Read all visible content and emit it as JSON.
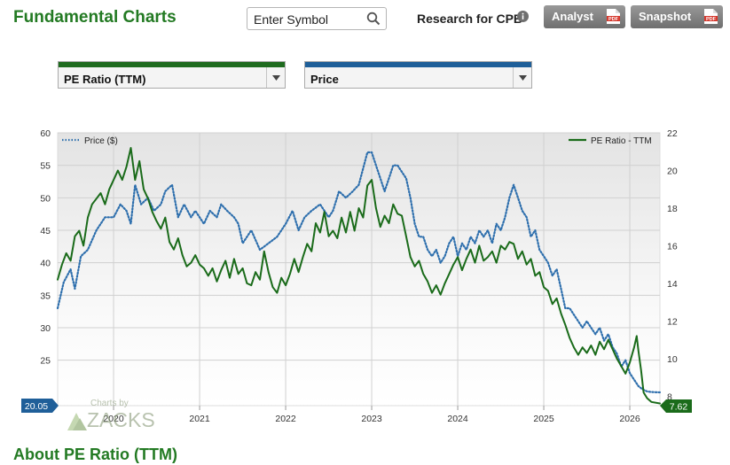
{
  "header": {
    "title": "Fundamental Charts",
    "search_placeholder": "Enter Symbol",
    "research_label": "Research for CPB",
    "analyst_label": "Analyst",
    "snapshot_label": "Snapshot",
    "pdf_badge": "PDF"
  },
  "controls": {
    "metric_select": "PE Ratio (TTM)",
    "compare_select": "Price"
  },
  "colors": {
    "title_green": "#237a23",
    "pe_line": "#1a6b1a",
    "price_line": "#2e6fad",
    "left_badge": "#1f5f99",
    "right_badge": "#1a6b1a"
  },
  "chart_data": {
    "type": "line",
    "x_tick_labels": [
      "2020",
      "2021",
      "2022",
      "2023",
      "2024",
      "2025",
      "2026"
    ],
    "y_left": {
      "ticks": [
        25,
        30,
        35,
        40,
        45,
        50,
        55,
        60
      ],
      "range": [
        18,
        60
      ]
    },
    "y_right": {
      "ticks": [
        8,
        10,
        12,
        14,
        16,
        18,
        20,
        22
      ],
      "range": [
        7.5,
        22
      ]
    },
    "x_range": [
      2019.35,
      2026.35
    ],
    "grid": true,
    "series": [
      {
        "name": "Price ($)",
        "axis": "left",
        "style": "dotted",
        "points": [
          [
            2019.35,
            33
          ],
          [
            2019.42,
            37
          ],
          [
            2019.5,
            39
          ],
          [
            2019.55,
            36
          ],
          [
            2019.62,
            41
          ],
          [
            2019.7,
            42
          ],
          [
            2019.8,
            45
          ],
          [
            2019.9,
            47
          ],
          [
            2020.0,
            47
          ],
          [
            2020.08,
            49
          ],
          [
            2020.15,
            48
          ],
          [
            2020.2,
            46
          ],
          [
            2020.25,
            52
          ],
          [
            2020.32,
            49
          ],
          [
            2020.4,
            50
          ],
          [
            2020.47,
            48
          ],
          [
            2020.55,
            49
          ],
          [
            2020.6,
            51
          ],
          [
            2020.68,
            52
          ],
          [
            2020.75,
            47
          ],
          [
            2020.82,
            49
          ],
          [
            2020.9,
            47
          ],
          [
            2020.95,
            48
          ],
          [
            2021.05,
            46
          ],
          [
            2021.12,
            48
          ],
          [
            2021.2,
            47
          ],
          [
            2021.25,
            49
          ],
          [
            2021.32,
            48
          ],
          [
            2021.4,
            47
          ],
          [
            2021.45,
            46
          ],
          [
            2021.5,
            43
          ],
          [
            2021.6,
            45
          ],
          [
            2021.7,
            42
          ],
          [
            2021.8,
            43
          ],
          [
            2021.9,
            44
          ],
          [
            2022.0,
            46
          ],
          [
            2022.08,
            48
          ],
          [
            2022.15,
            45
          ],
          [
            2022.22,
            47
          ],
          [
            2022.3,
            48
          ],
          [
            2022.4,
            49
          ],
          [
            2022.5,
            47
          ],
          [
            2022.55,
            48
          ],
          [
            2022.62,
            51
          ],
          [
            2022.7,
            50
          ],
          [
            2022.78,
            51
          ],
          [
            2022.85,
            52
          ],
          [
            2022.95,
            57
          ],
          [
            2023.0,
            57
          ],
          [
            2023.05,
            55
          ],
          [
            2023.1,
            53
          ],
          [
            2023.15,
            51
          ],
          [
            2023.2,
            53
          ],
          [
            2023.25,
            55
          ],
          [
            2023.3,
            55
          ],
          [
            2023.35,
            54
          ],
          [
            2023.4,
            53
          ],
          [
            2023.45,
            50
          ],
          [
            2023.5,
            46
          ],
          [
            2023.55,
            44
          ],
          [
            2023.6,
            44
          ],
          [
            2023.65,
            42
          ],
          [
            2023.7,
            41
          ],
          [
            2023.75,
            42
          ],
          [
            2023.8,
            40
          ],
          [
            2023.85,
            41
          ],
          [
            2023.9,
            43
          ],
          [
            2023.95,
            44
          ],
          [
            2024.0,
            41
          ],
          [
            2024.05,
            43
          ],
          [
            2024.1,
            42
          ],
          [
            2024.15,
            44
          ],
          [
            2024.2,
            43
          ],
          [
            2024.25,
            45
          ],
          [
            2024.3,
            44
          ],
          [
            2024.35,
            45
          ],
          [
            2024.4,
            43
          ],
          [
            2024.45,
            46
          ],
          [
            2024.5,
            45
          ],
          [
            2024.55,
            47
          ],
          [
            2024.6,
            50
          ],
          [
            2024.65,
            52
          ],
          [
            2024.7,
            50
          ],
          [
            2024.75,
            48
          ],
          [
            2024.8,
            47
          ],
          [
            2024.85,
            44
          ],
          [
            2024.9,
            45
          ],
          [
            2024.95,
            42
          ],
          [
            2025.0,
            41
          ],
          [
            2025.05,
            40
          ],
          [
            2025.1,
            38
          ],
          [
            2025.15,
            39
          ],
          [
            2025.2,
            36
          ],
          [
            2025.25,
            33
          ],
          [
            2025.3,
            33
          ],
          [
            2025.35,
            32
          ],
          [
            2025.4,
            31
          ],
          [
            2025.45,
            30
          ],
          [
            2025.5,
            31
          ],
          [
            2025.55,
            30
          ],
          [
            2025.6,
            29
          ],
          [
            2025.65,
            30
          ],
          [
            2025.7,
            28
          ],
          [
            2025.75,
            29
          ],
          [
            2025.8,
            27
          ],
          [
            2025.85,
            26
          ],
          [
            2025.9,
            24
          ],
          [
            2025.95,
            25
          ],
          [
            2026.0,
            23
          ],
          [
            2026.05,
            22
          ],
          [
            2026.1,
            21
          ],
          [
            2026.15,
            20.5
          ],
          [
            2026.2,
            20.2
          ],
          [
            2026.25,
            20.1
          ],
          [
            2026.35,
            20.05
          ]
        ]
      },
      {
        "name": "PE Ratio - TTM",
        "axis": "right",
        "style": "solid",
        "points": [
          [
            2019.35,
            14.2
          ],
          [
            2019.4,
            15
          ],
          [
            2019.45,
            15.6
          ],
          [
            2019.5,
            15.2
          ],
          [
            2019.55,
            16.5
          ],
          [
            2019.6,
            16.8
          ],
          [
            2019.65,
            16
          ],
          [
            2019.7,
            17.5
          ],
          [
            2019.75,
            18.2
          ],
          [
            2019.8,
            18.5
          ],
          [
            2019.85,
            18.8
          ],
          [
            2019.9,
            18.2
          ],
          [
            2019.95,
            19
          ],
          [
            2020.0,
            19.5
          ],
          [
            2020.05,
            20
          ],
          [
            2020.1,
            19.5
          ],
          [
            2020.15,
            20.2
          ],
          [
            2020.2,
            21.2
          ],
          [
            2020.25,
            19.5
          ],
          [
            2020.3,
            20.5
          ],
          [
            2020.35,
            19
          ],
          [
            2020.4,
            18.5
          ],
          [
            2020.45,
            17.8
          ],
          [
            2020.5,
            17.3
          ],
          [
            2020.55,
            16.9
          ],
          [
            2020.6,
            17.5
          ],
          [
            2020.65,
            16.2
          ],
          [
            2020.7,
            15.8
          ],
          [
            2020.75,
            16.4
          ],
          [
            2020.8,
            15.5
          ],
          [
            2020.85,
            14.9
          ],
          [
            2020.9,
            15.1
          ],
          [
            2020.95,
            15.5
          ],
          [
            2021.0,
            15
          ],
          [
            2021.05,
            14.8
          ],
          [
            2021.1,
            14.4
          ],
          [
            2021.15,
            14.8
          ],
          [
            2021.2,
            14.1
          ],
          [
            2021.25,
            14.7
          ],
          [
            2021.3,
            15.2
          ],
          [
            2021.35,
            14.3
          ],
          [
            2021.4,
            15.3
          ],
          [
            2021.45,
            14.5
          ],
          [
            2021.5,
            14.8
          ],
          [
            2021.55,
            14
          ],
          [
            2021.6,
            13.9
          ],
          [
            2021.65,
            14.6
          ],
          [
            2021.7,
            14.2
          ],
          [
            2021.75,
            15.7
          ],
          [
            2021.8,
            14.6
          ],
          [
            2021.85,
            13.8
          ],
          [
            2021.9,
            13.5
          ],
          [
            2021.95,
            14.3
          ],
          [
            2022.0,
            13.9
          ],
          [
            2022.05,
            14.5
          ],
          [
            2022.1,
            15.3
          ],
          [
            2022.15,
            14.6
          ],
          [
            2022.2,
            15.4
          ],
          [
            2022.25,
            16.1
          ],
          [
            2022.3,
            15.7
          ],
          [
            2022.35,
            17.2
          ],
          [
            2022.4,
            16.7
          ],
          [
            2022.45,
            17.8
          ],
          [
            2022.5,
            16.5
          ],
          [
            2022.55,
            16.8
          ],
          [
            2022.6,
            16.4
          ],
          [
            2022.65,
            17.5
          ],
          [
            2022.7,
            16.7
          ],
          [
            2022.75,
            17.8
          ],
          [
            2022.8,
            16.8
          ],
          [
            2022.85,
            18
          ],
          [
            2022.9,
            17.5
          ],
          [
            2022.95,
            19.2
          ],
          [
            2023.0,
            19.5
          ],
          [
            2023.05,
            18
          ],
          [
            2023.1,
            17
          ],
          [
            2023.15,
            17.6
          ],
          [
            2023.2,
            17.2
          ],
          [
            2023.25,
            18.2
          ],
          [
            2023.3,
            17.7
          ],
          [
            2023.35,
            17.6
          ],
          [
            2023.4,
            16.5
          ],
          [
            2023.45,
            15.4
          ],
          [
            2023.5,
            14.9
          ],
          [
            2023.55,
            15.2
          ],
          [
            2023.6,
            14.5
          ],
          [
            2023.65,
            14.1
          ],
          [
            2023.7,
            13.5
          ],
          [
            2023.75,
            13.9
          ],
          [
            2023.8,
            13.4
          ],
          [
            2023.85,
            14
          ],
          [
            2023.9,
            14.5
          ],
          [
            2023.95,
            15
          ],
          [
            2024.0,
            15.4
          ],
          [
            2024.05,
            14.7
          ],
          [
            2024.1,
            15.3
          ],
          [
            2024.15,
            15.8
          ],
          [
            2024.2,
            15.1
          ],
          [
            2024.25,
            16
          ],
          [
            2024.3,
            15.2
          ],
          [
            2024.35,
            15.4
          ],
          [
            2024.4,
            15.7
          ],
          [
            2024.45,
            15.1
          ],
          [
            2024.5,
            16
          ],
          [
            2024.55,
            15.8
          ],
          [
            2024.6,
            16.2
          ],
          [
            2024.65,
            16.1
          ],
          [
            2024.7,
            15.3
          ],
          [
            2024.75,
            15.7
          ],
          [
            2024.8,
            15
          ],
          [
            2024.85,
            15.3
          ],
          [
            2024.9,
            14.4
          ],
          [
            2024.95,
            14.6
          ],
          [
            2025.0,
            13.8
          ],
          [
            2025.05,
            13.6
          ],
          [
            2025.1,
            12.9
          ],
          [
            2025.15,
            13.2
          ],
          [
            2025.2,
            12.4
          ],
          [
            2025.25,
            11.8
          ],
          [
            2025.3,
            11.1
          ],
          [
            2025.35,
            10.6
          ],
          [
            2025.4,
            10.2
          ],
          [
            2025.45,
            10.6
          ],
          [
            2025.5,
            10.3
          ],
          [
            2025.55,
            10.7
          ],
          [
            2025.6,
            10.2
          ],
          [
            2025.65,
            10.9
          ],
          [
            2025.7,
            10.5
          ],
          [
            2025.75,
            11
          ],
          [
            2025.8,
            10.5
          ],
          [
            2025.85,
            10
          ],
          [
            2025.9,
            9.6
          ],
          [
            2025.95,
            9.2
          ],
          [
            2026.0,
            9.8
          ],
          [
            2026.05,
            10.6
          ],
          [
            2026.08,
            11.2
          ],
          [
            2026.1,
            10.4
          ],
          [
            2026.13,
            9.4
          ],
          [
            2026.16,
            8.2
          ],
          [
            2026.2,
            7.9
          ],
          [
            2026.25,
            7.7
          ],
          [
            2026.35,
            7.62
          ]
        ]
      }
    ],
    "left_end_label": "20.05",
    "right_end_label": "7.62",
    "watermark_top": "Charts by",
    "watermark_brand": "ZACKS"
  },
  "footer": {
    "section_title": "About PE Ratio (TTM)"
  }
}
